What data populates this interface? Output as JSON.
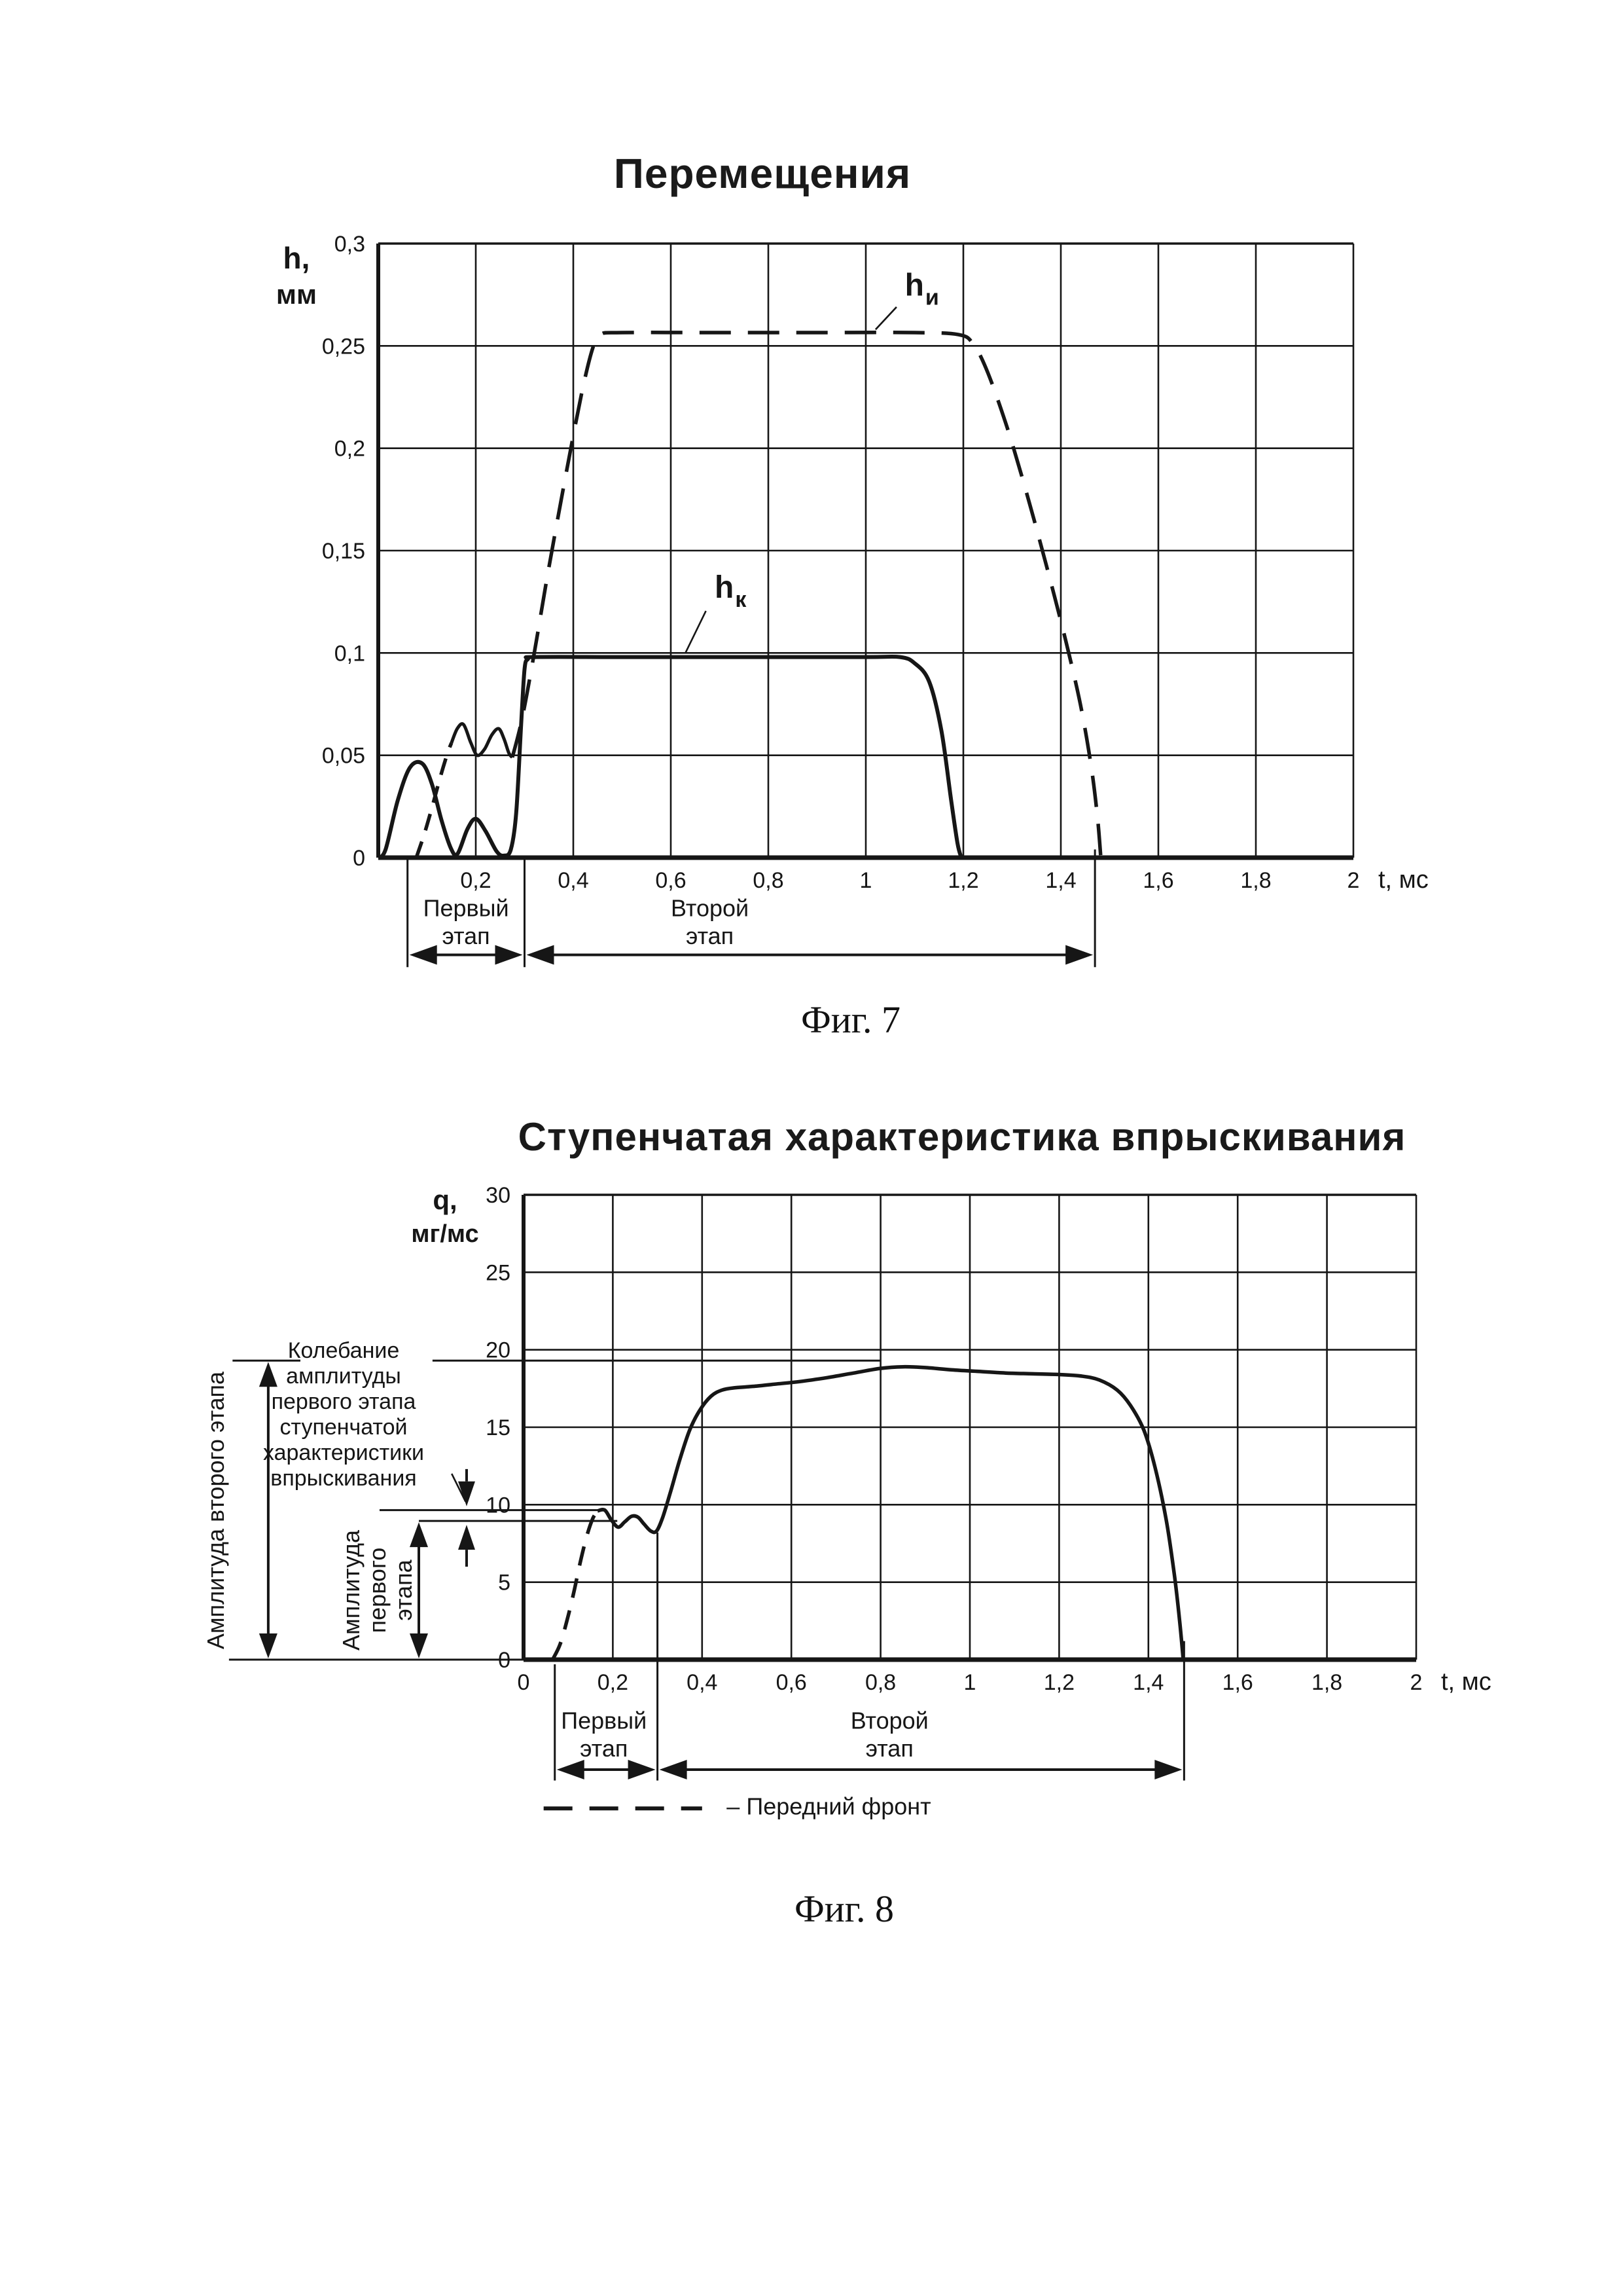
{
  "page": {
    "fig7_caption": "Фиг. 7",
    "fig8_caption": "Фиг. 8"
  },
  "side_labels": {
    "amp2": "Амплитуда второго этапа",
    "amp1_lines": [
      "Амплитуда",
      "первого",
      "этапа"
    ],
    "kolebanie_lines": [
      "Колебание",
      "амплитуды",
      "первого этапа",
      "ступенчатой",
      "характеристики",
      "впрыскивания"
    ]
  },
  "chart_data": [
    {
      "id": "fig7",
      "type": "line",
      "title": "Перемещения",
      "ylabel_lines": [
        "h,",
        "мм"
      ],
      "xlabel": "t, мс",
      "xlim": [
        0,
        2
      ],
      "ylim": [
        0,
        0.3
      ],
      "grid": true,
      "xticks": [
        {
          "v": 0,
          "label": ""
        },
        {
          "v": 0.2,
          "label": "0,2"
        },
        {
          "v": 0.4,
          "label": "0,4"
        },
        {
          "v": 0.6,
          "label": "0,6"
        },
        {
          "v": 0.8,
          "label": "0,8"
        },
        {
          "v": 1,
          "label": "1"
        },
        {
          "v": 1.2,
          "label": "1,2"
        },
        {
          "v": 1.4,
          "label": "1,4"
        },
        {
          "v": 1.6,
          "label": "1,6"
        },
        {
          "v": 1.8,
          "label": "1,8"
        },
        {
          "v": 2,
          "label": "2"
        }
      ],
      "yticks": [
        {
          "v": 0.3,
          "label": "0,3"
        },
        {
          "v": 0.25,
          "label": "0,25"
        },
        {
          "v": 0.2,
          "label": "0,2"
        },
        {
          "v": 0.15,
          "label": "0,15"
        },
        {
          "v": 0.1,
          "label": "0,1"
        },
        {
          "v": 0.05,
          "label": "0,05"
        },
        {
          "v": 0,
          "label": "0"
        }
      ],
      "series": [
        {
          "name": "h_k_valve",
          "style": "solid",
          "width": 6,
          "points": [
            [
              0,
              0
            ],
            [
              0.015,
              0.004
            ],
            [
              0.04,
              0.028
            ],
            [
              0.065,
              0.044
            ],
            [
              0.09,
              0.046
            ],
            [
              0.11,
              0.036
            ],
            [
              0.13,
              0.018
            ],
            [
              0.15,
              0.004
            ],
            [
              0.163,
              0.002
            ],
            [
              0.183,
              0.014
            ],
            [
              0.2,
              0.019
            ],
            [
              0.22,
              0.013
            ],
            [
              0.243,
              0.003
            ],
            [
              0.258,
              0.001
            ],
            [
              0.272,
              0.004
            ],
            [
              0.283,
              0.022
            ],
            [
              0.293,
              0.065
            ],
            [
              0.3,
              0.092
            ],
            [
              0.307,
              0.097
            ],
            [
              0.32,
              0.098
            ],
            [
              0.5,
              0.098
            ],
            [
              0.75,
              0.098
            ],
            [
              1.0,
              0.098
            ],
            [
              1.07,
              0.098
            ],
            [
              1.1,
              0.095
            ],
            [
              1.13,
              0.086
            ],
            [
              1.155,
              0.062
            ],
            [
              1.175,
              0.028
            ],
            [
              1.188,
              0.007
            ],
            [
              1.196,
              0
            ]
          ]
        },
        {
          "name": "h_i_front",
          "style": "dashed",
          "dash": "26 18",
          "width": 5.5,
          "points": [
            [
              0.078,
              0
            ],
            [
              0.095,
              0.012
            ],
            [
              0.112,
              0.026
            ],
            [
              0.128,
              0.04
            ],
            [
              0.142,
              0.051
            ],
            [
              0.15,
              0.056
            ]
          ]
        },
        {
          "name": "h_i_oscillation",
          "style": "solid",
          "width": 5,
          "points": [
            [
              0.15,
              0.056
            ],
            [
              0.162,
              0.063
            ],
            [
              0.175,
              0.065
            ],
            [
              0.19,
              0.056
            ],
            [
              0.203,
              0.05
            ],
            [
              0.218,
              0.053
            ],
            [
              0.233,
              0.06
            ],
            [
              0.247,
              0.063
            ],
            [
              0.258,
              0.058
            ],
            [
              0.268,
              0.051
            ],
            [
              0.275,
              0.049
            ]
          ]
        },
        {
          "name": "h_i_needle",
          "style": "dashed",
          "dash": "48 26",
          "width": 5.5,
          "points": [
            [
              0.275,
              0.049
            ],
            [
              0.295,
              0.068
            ],
            [
              0.32,
              0.1
            ],
            [
              0.345,
              0.135
            ],
            [
              0.37,
              0.168
            ],
            [
              0.395,
              0.2
            ],
            [
              0.42,
              0.23
            ],
            [
              0.44,
              0.249
            ],
            [
              0.455,
              0.2555
            ],
            [
              0.5,
              0.2565
            ],
            [
              0.7,
              0.2565
            ],
            [
              0.9,
              0.2565
            ],
            [
              1.1,
              0.2565
            ],
            [
              1.19,
              0.2555
            ],
            [
              1.22,
              0.251
            ],
            [
              1.25,
              0.237
            ],
            [
              1.29,
              0.21
            ],
            [
              1.33,
              0.178
            ],
            [
              1.37,
              0.143
            ],
            [
              1.41,
              0.106
            ],
            [
              1.44,
              0.075
            ],
            [
              1.462,
              0.045
            ],
            [
              1.475,
              0.02
            ],
            [
              1.482,
              0
            ]
          ]
        }
      ],
      "annotations": [
        {
          "type": "curve-label",
          "t": 1.08,
          "y": 0.2745,
          "main": "h",
          "sub": "и"
        },
        {
          "type": "dline",
          "pts": [
            [
              1.063,
              0.269
            ],
            [
              1.02,
              0.258
            ]
          ]
        },
        {
          "type": "curve-label",
          "t": 0.69,
          "y": 0.127,
          "main": "h",
          "sub": "к"
        },
        {
          "type": "dline",
          "pts": [
            [
              0.672,
              0.1205
            ],
            [
              0.63,
              0.1
            ]
          ]
        },
        {
          "type": "vline",
          "t": 0.06,
          "y1": -0.001,
          "y2": -0.0535
        },
        {
          "type": "vline",
          "t": 0.3,
          "y1": -0.001,
          "y2": -0.0535
        },
        {
          "type": "vline",
          "t": 1.47,
          "y1": 0.004,
          "y2": -0.0535
        },
        {
          "type": "text",
          "t": 0.18,
          "y": -0.0245,
          "text": "Первый"
        },
        {
          "type": "text",
          "t": 0.18,
          "y": -0.038,
          "text": "этап"
        },
        {
          "type": "text",
          "t": 0.68,
          "y": -0.0245,
          "text": "Второй"
        },
        {
          "type": "text",
          "t": 0.68,
          "y": -0.038,
          "text": "этап"
        },
        {
          "type": "arrow-x",
          "t1": 0.06,
          "t2": 0.3,
          "y": -0.0475
        },
        {
          "type": "arrow-x",
          "t1": 0.3,
          "t2": 1.47,
          "y": -0.0475
        }
      ]
    },
    {
      "id": "fig8",
      "type": "line",
      "title": "Ступенчатая характеристика впрыскивания",
      "ylabel_lines": [
        "q,",
        "мг/мс"
      ],
      "xlabel": "t, мс",
      "xlim": [
        0,
        2
      ],
      "ylim": [
        0,
        30
      ],
      "grid": true,
      "xticks": [
        {
          "v": 0,
          "label": "0"
        },
        {
          "v": 0.2,
          "label": "0,2"
        },
        {
          "v": 0.4,
          "label": "0,4"
        },
        {
          "v": 0.6,
          "label": "0,6"
        },
        {
          "v": 0.8,
          "label": "0,8"
        },
        {
          "v": 1,
          "label": "1"
        },
        {
          "v": 1.2,
          "label": "1,2"
        },
        {
          "v": 1.4,
          "label": "1,4"
        },
        {
          "v": 1.6,
          "label": "1,6"
        },
        {
          "v": 1.8,
          "label": "1,8"
        },
        {
          "v": 2,
          "label": "2"
        }
      ],
      "yticks": [
        {
          "v": 30,
          "label": "30"
        },
        {
          "v": 25,
          "label": "25"
        },
        {
          "v": 20,
          "label": "20"
        },
        {
          "v": 15,
          "label": "15"
        },
        {
          "v": 10,
          "label": "10"
        },
        {
          "v": 5,
          "label": "5"
        },
        {
          "v": 0,
          "label": "0"
        }
      ],
      "amplitude_second_stage": 19.3,
      "amplitude_first_stage": 9.3,
      "oscillation_band": [
        8.95,
        9.65
      ],
      "series": [
        {
          "name": "front_edge",
          "style": "dashed",
          "dash": "30 20",
          "width": 5.5,
          "points": [
            [
              0.065,
              0
            ],
            [
              0.082,
              1.0
            ],
            [
              0.098,
              2.6
            ],
            [
              0.113,
              4.4
            ],
            [
              0.128,
              6.4
            ],
            [
              0.142,
              8.0
            ],
            [
              0.155,
              9.1
            ],
            [
              0.166,
              9.6
            ]
          ]
        },
        {
          "name": "injection_rate",
          "style": "solid",
          "width": 5.5,
          "points": [
            [
              0.166,
              9.6
            ],
            [
              0.182,
              9.65
            ],
            [
              0.197,
              9.0
            ],
            [
              0.212,
              8.55
            ],
            [
              0.227,
              8.9
            ],
            [
              0.242,
              9.25
            ],
            [
              0.256,
              9.2
            ],
            [
              0.27,
              8.75
            ],
            [
              0.285,
              8.3
            ],
            [
              0.298,
              8.3
            ],
            [
              0.312,
              9.2
            ],
            [
              0.33,
              10.9
            ],
            [
              0.35,
              12.9
            ],
            [
              0.372,
              14.8
            ],
            [
              0.395,
              16.1
            ],
            [
              0.42,
              17.0
            ],
            [
              0.445,
              17.4
            ],
            [
              0.475,
              17.55
            ],
            [
              0.52,
              17.65
            ],
            [
              0.57,
              17.8
            ],
            [
              0.62,
              17.95
            ],
            [
              0.68,
              18.2
            ],
            [
              0.74,
              18.5
            ],
            [
              0.8,
              18.8
            ],
            [
              0.85,
              18.9
            ],
            [
              0.9,
              18.85
            ],
            [
              0.96,
              18.7
            ],
            [
              1.02,
              18.6
            ],
            [
              1.08,
              18.5
            ],
            [
              1.14,
              18.45
            ],
            [
              1.2,
              18.4
            ],
            [
              1.25,
              18.3
            ],
            [
              1.29,
              18.05
            ],
            [
              1.33,
              17.4
            ],
            [
              1.36,
              16.4
            ],
            [
              1.39,
              14.8
            ],
            [
              1.415,
              12.4
            ],
            [
              1.44,
              9.0
            ],
            [
              1.458,
              5.5
            ],
            [
              1.47,
              2.5
            ],
            [
              1.478,
              0
            ]
          ]
        }
      ],
      "annotations": [
        {
          "type": "hline",
          "y": 19.3,
          "t1": -0.652,
          "t2": -0.5,
          "w": 3
        },
        {
          "type": "hline",
          "y": 19.3,
          "t1": -0.204,
          "t2": 0.8,
          "w": 3
        },
        {
          "type": "hline",
          "y": 9.65,
          "t1": -0.3226,
          "t2": 0.17,
          "w": 3
        },
        {
          "type": "hline",
          "y": 8.95,
          "t1": -0.2346,
          "t2": 0.21,
          "w": 3
        },
        {
          "type": "hline",
          "y": 0,
          "t1": -0.66,
          "t2": 0,
          "w": 3
        },
        {
          "type": "arrow-y",
          "t": -0.572,
          "y1": 19.3,
          "y2": 0,
          "heads": "both"
        },
        {
          "type": "arrow-y",
          "t": -0.2346,
          "y1": 8.95,
          "y2": 0,
          "heads": "both"
        },
        {
          "type": "arrow-y",
          "t": -0.1276,
          "y1": 12.3,
          "y2": 9.9,
          "heads": "end"
        },
        {
          "type": "arrow-y",
          "t": -0.1276,
          "y1": 6.0,
          "y2": 8.7,
          "heads": "end"
        },
        {
          "type": "dline",
          "pts": [
            [
              -0.161,
              12.0
            ],
            [
              -0.13,
              10.2
            ]
          ]
        },
        {
          "type": "vline",
          "t": 0.07,
          "y1": -0.3,
          "y2": -7.8
        },
        {
          "type": "vline",
          "t": 0.3,
          "y1": 8.2,
          "y2": -7.8
        },
        {
          "type": "vline",
          "t": 1.48,
          "y1": 1.2,
          "y2": -7.8
        },
        {
          "type": "text",
          "t": 0.18,
          "y": -3.9,
          "text": "Первый"
        },
        {
          "type": "text",
          "t": 0.18,
          "y": -5.7,
          "text": "этап"
        },
        {
          "type": "text",
          "t": 0.82,
          "y": -3.9,
          "text": "Второй"
        },
        {
          "type": "text",
          "t": 0.82,
          "y": -5.7,
          "text": "этап"
        },
        {
          "type": "arrow-x",
          "t1": 0.07,
          "t2": 0.3,
          "y": -7.1
        },
        {
          "type": "arrow-x",
          "t1": 0.3,
          "t2": 1.48,
          "y": -7.1
        },
        {
          "type": "dashline",
          "y": -9.6,
          "t1": 0.045,
          "t2": 0.4,
          "dash": "44 26",
          "w": 6
        },
        {
          "type": "text",
          "t": 0.455,
          "y": -9.45,
          "text": "– Передний фронт",
          "anchor": "start",
          "size": 36
        }
      ]
    }
  ]
}
